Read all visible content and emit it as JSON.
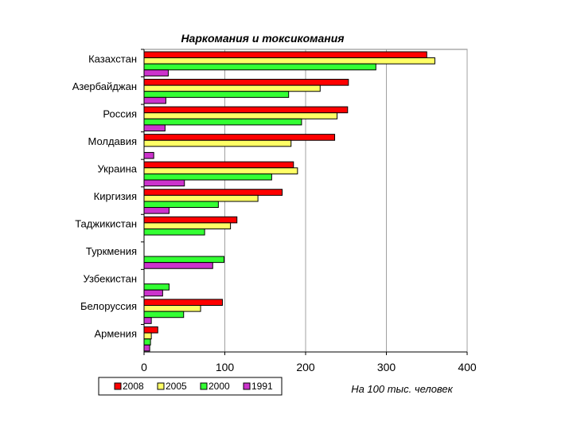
{
  "chart_data": {
    "type": "bar",
    "orientation": "horizontal",
    "title": "Наркомания и токсикомания",
    "units_note": "На 100 тыс. человек",
    "categories": [
      "Казахстан",
      "Азербайджан",
      "Россия",
      "Молдавия",
      "Украина",
      "Киргизия",
      "Таджикистан",
      "Туркмения",
      "Узбекистан",
      "Белоруссия",
      "Армения"
    ],
    "series": [
      {
        "name": "2008",
        "color": "#ff0000",
        "values": [
          350,
          253,
          252,
          236,
          185,
          171,
          115,
          0,
          0,
          97,
          17
        ]
      },
      {
        "name": "2005",
        "color": "#ffff66",
        "values": [
          360,
          218,
          239,
          182,
          190,
          141,
          107,
          0,
          0,
          70,
          9
        ]
      },
      {
        "name": "2000",
        "color": "#33ff33",
        "values": [
          287,
          179,
          195,
          0,
          158,
          92,
          75,
          99,
          31,
          49,
          8
        ]
      },
      {
        "name": "1991",
        "color": "#cc33cc",
        "values": [
          30,
          27,
          26,
          12,
          50,
          31,
          0,
          85,
          23,
          9,
          7
        ]
      }
    ],
    "xlim": [
      0,
      400
    ],
    "xticks": [
      "0",
      "100",
      "200",
      "300",
      "400"
    ],
    "grid": true,
    "legend_position": "bottom-left"
  }
}
